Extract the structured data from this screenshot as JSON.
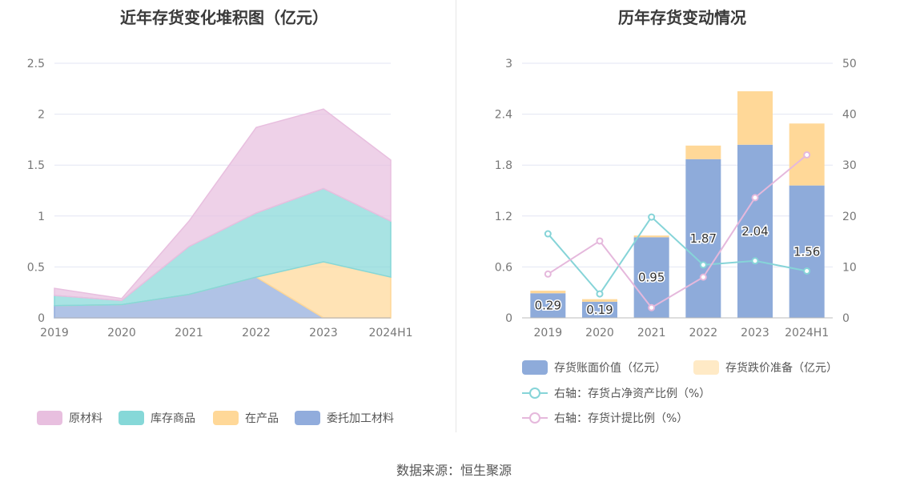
{
  "source_label": "数据来源：恒生聚源",
  "colors": {
    "raw_material": "#e8bfdf",
    "finished_goods": "#86d8d8",
    "wip": "#ffd898",
    "consigned": "#91acdc",
    "book_value": "#8eabda",
    "impairment": "#ffd898",
    "ratio_line": "#86d4d8",
    "provision_line": "#e5b8dc"
  },
  "chart_data": [
    {
      "type": "area",
      "title": "近年存货变化堆积图（亿元）",
      "x": [
        "2019",
        "2020",
        "2021",
        "2022",
        "2023",
        "2024H1"
      ],
      "ylim": [
        0,
        2.5
      ],
      "yticks": [
        "0",
        "0.5",
        "1",
        "1.5",
        "2",
        "2.5"
      ],
      "ytick_values": [
        0,
        0.5,
        1,
        1.5,
        2,
        2.5
      ],
      "stacked": true,
      "grid": true,
      "legend_position": "bottom",
      "series": [
        {
          "name": "委托加工材料",
          "color_key": "consigned",
          "values": [
            0.12,
            0.13,
            0.23,
            0.4,
            0,
            0
          ]
        },
        {
          "name": "在产品",
          "color_key": "wip",
          "values": [
            0,
            0,
            0,
            0,
            0.55,
            0.4
          ]
        },
        {
          "name": "库存商品",
          "color_key": "finished_goods",
          "values": [
            0.1,
            0.04,
            0.47,
            0.63,
            0.72,
            0.55
          ]
        },
        {
          "name": "原材料",
          "color_key": "raw_material",
          "values": [
            0.07,
            0.02,
            0.25,
            0.84,
            0.78,
            0.6
          ]
        }
      ],
      "legend_order": [
        "原材料",
        "库存商品",
        "在产品",
        "委托加工材料"
      ]
    },
    {
      "type": "bar",
      "title": "历年存货变动情况",
      "x": [
        "2019",
        "2020",
        "2021",
        "2022",
        "2023",
        "2024H1"
      ],
      "ylim": [
        0,
        3
      ],
      "yticks": [
        "0",
        "0.6",
        "1.2",
        "1.8",
        "2.4",
        "3"
      ],
      "ytick_values": [
        0,
        0.6,
        1.2,
        1.8,
        2.4,
        3
      ],
      "y2lim": [
        0,
        50
      ],
      "y2ticks": [
        "0",
        "10",
        "20",
        "30",
        "40",
        "50"
      ],
      "y2tick_values": [
        0,
        10,
        20,
        30,
        40,
        50
      ],
      "stacked": true,
      "grid": true,
      "legend_position": "bottom",
      "bar_series": [
        {
          "name": "存货账面价值（亿元）",
          "color_key": "book_value",
          "values": [
            0.29,
            0.19,
            0.95,
            1.87,
            2.04,
            1.56
          ],
          "labels": [
            "0.29",
            "0.19",
            "0.95",
            "1.87",
            "2.04",
            "1.56"
          ]
        },
        {
          "name": "存货跌价准备（亿元）",
          "color_key": "impairment",
          "values": [
            0.03,
            0.03,
            0.02,
            0.16,
            0.63,
            0.73
          ]
        }
      ],
      "line_series": [
        {
          "name": "右轴：存货占净资产比例（%）",
          "color_key": "ratio_line",
          "axis": "right",
          "values": [
            16.5,
            4.7,
            19.8,
            10.4,
            11.2,
            9.2
          ]
        },
        {
          "name": "右轴：存货计提比例（%）",
          "color_key": "provision_line",
          "axis": "right",
          "values": [
            8.6,
            15.1,
            2.0,
            8.0,
            23.6,
            32.0
          ]
        }
      ]
    }
  ]
}
